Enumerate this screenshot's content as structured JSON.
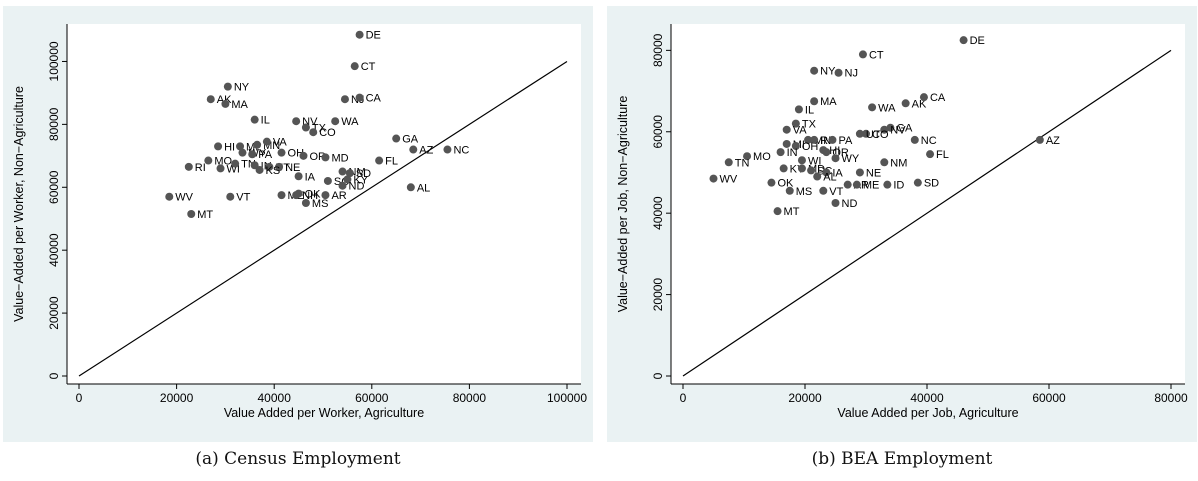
{
  "captions": {
    "a": "(a) Census Employment",
    "b": "(b) BEA Employment"
  },
  "colors": {
    "panel_bg": "#eaf2f3",
    "plot_bg": "#ffffff",
    "marker": "#555555",
    "axis": "#000000"
  },
  "chart_data": [
    {
      "type": "scatter",
      "xlabel": "Value Added per Worker, Agriculture",
      "ylabel": "Value−Added per Worker, Non−Agriculture",
      "xlim": [
        0,
        100000
      ],
      "ylim": [
        0,
        110000
      ],
      "xticks": [
        0,
        20000,
        40000,
        60000,
        80000,
        100000
      ],
      "yticks": [
        0,
        20000,
        40000,
        60000,
        80000,
        100000
      ],
      "reference_line": "45-degree",
      "points": [
        {
          "label": "DE",
          "x": 57500,
          "y": 108500
        },
        {
          "label": "CT",
          "x": 56500,
          "y": 98500
        },
        {
          "label": "NY",
          "x": 30500,
          "y": 92000
        },
        {
          "label": "AK",
          "x": 27000,
          "y": 88000
        },
        {
          "label": "MA",
          "x": 30000,
          "y": 86500
        },
        {
          "label": "NJ",
          "x": 54500,
          "y": 88000
        },
        {
          "label": "CA",
          "x": 57500,
          "y": 88500
        },
        {
          "label": "IL",
          "x": 36000,
          "y": 81500
        },
        {
          "label": "NV",
          "x": 44500,
          "y": 81000
        },
        {
          "label": "WA",
          "x": 52500,
          "y": 81000
        },
        {
          "label": "TX",
          "x": 46500,
          "y": 79000
        },
        {
          "label": "CO",
          "x": 48000,
          "y": 77500
        },
        {
          "label": "GA",
          "x": 65000,
          "y": 75500
        },
        {
          "label": "HI",
          "x": 28500,
          "y": 73000
        },
        {
          "label": "MI",
          "x": 33000,
          "y": 73000
        },
        {
          "label": "MN",
          "x": 36500,
          "y": 73500
        },
        {
          "label": "VA",
          "x": 38500,
          "y": 74500
        },
        {
          "label": "WY",
          "x": 33500,
          "y": 71000
        },
        {
          "label": "PA",
          "x": 35500,
          "y": 70500
        },
        {
          "label": "OH",
          "x": 41500,
          "y": 71000
        },
        {
          "label": "OR",
          "x": 46000,
          "y": 70000
        },
        {
          "label": "MD",
          "x": 50500,
          "y": 69500
        },
        {
          "label": "AZ",
          "x": 68500,
          "y": 72000
        },
        {
          "label": "NC",
          "x": 75500,
          "y": 72000
        },
        {
          "label": "FL",
          "x": 61500,
          "y": 68500
        },
        {
          "label": "MO",
          "x": 26500,
          "y": 68500
        },
        {
          "label": "RI",
          "x": 22500,
          "y": 66500
        },
        {
          "label": "WI",
          "x": 29000,
          "y": 66000
        },
        {
          "label": "TN",
          "x": 32000,
          "y": 67500
        },
        {
          "label": "IN",
          "x": 36000,
          "y": 67000
        },
        {
          "label": "UT",
          "x": 39000,
          "y": 66500
        },
        {
          "label": "NE",
          "x": 41000,
          "y": 66500
        },
        {
          "label": "KS",
          "x": 37000,
          "y": 65500
        },
        {
          "label": "IA",
          "x": 45000,
          "y": 63500
        },
        {
          "label": "NM",
          "x": 54000,
          "y": 65000
        },
        {
          "label": "SD",
          "x": 55500,
          "y": 64500
        },
        {
          "label": "SC",
          "x": 51000,
          "y": 62000
        },
        {
          "label": "KY",
          "x": 55000,
          "y": 62500
        },
        {
          "label": "ND",
          "x": 54000,
          "y": 60500
        },
        {
          "label": "AL",
          "x": 68000,
          "y": 60000
        },
        {
          "label": "WV",
          "x": 18500,
          "y": 57000
        },
        {
          "label": "VT",
          "x": 31000,
          "y": 57000
        },
        {
          "label": "ME",
          "x": 41500,
          "y": 57500
        },
        {
          "label": "OK",
          "x": 45000,
          "y": 58000
        },
        {
          "label": "NH",
          "x": 44500,
          "y": 57500
        },
        {
          "label": "AR",
          "x": 50500,
          "y": 57500
        },
        {
          "label": "MS",
          "x": 46500,
          "y": 55000
        },
        {
          "label": "MT",
          "x": 23000,
          "y": 51500
        }
      ]
    },
    {
      "type": "scatter",
      "xlabel": "Value Added per Job, Agriculture",
      "ylabel": "Value−Added per Job, Non−Agriculture",
      "xlim": [
        0,
        80000
      ],
      "ylim": [
        0,
        85000
      ],
      "xticks": [
        0,
        20000,
        40000,
        60000,
        80000
      ],
      "yticks": [
        0,
        20000,
        40000,
        60000,
        80000
      ],
      "reference_line": "45-degree",
      "points": [
        {
          "label": "DE",
          "x": 46000,
          "y": 82500
        },
        {
          "label": "CT",
          "x": 29500,
          "y": 79000
        },
        {
          "label": "NY",
          "x": 21500,
          "y": 75000
        },
        {
          "label": "NJ",
          "x": 25500,
          "y": 74500
        },
        {
          "label": "MA",
          "x": 21500,
          "y": 67500
        },
        {
          "label": "IL",
          "x": 19000,
          "y": 65500
        },
        {
          "label": "WA",
          "x": 31000,
          "y": 66000
        },
        {
          "label": "AK",
          "x": 36500,
          "y": 67000
        },
        {
          "label": "CA",
          "x": 39500,
          "y": 68500
        },
        {
          "label": "TX",
          "x": 18500,
          "y": 62000
        },
        {
          "label": "VA",
          "x": 17000,
          "y": 60500
        },
        {
          "label": "GA",
          "x": 34000,
          "y": 61000
        },
        {
          "label": "NV",
          "x": 33000,
          "y": 60500
        },
        {
          "label": "CO",
          "x": 30000,
          "y": 59500
        },
        {
          "label": "UT",
          "x": 29000,
          "y": 59500
        },
        {
          "label": "MN",
          "x": 20500,
          "y": 58000
        },
        {
          "label": "RI",
          "x": 21500,
          "y": 58000
        },
        {
          "label": "PA",
          "x": 24500,
          "y": 58000
        },
        {
          "label": "NC",
          "x": 38000,
          "y": 58000
        },
        {
          "label": "AZ",
          "x": 58500,
          "y": 58000
        },
        {
          "label": "MI",
          "x": 17000,
          "y": 57000
        },
        {
          "label": "OH",
          "x": 18500,
          "y": 56500
        },
        {
          "label": "HI",
          "x": 23000,
          "y": 55500
        },
        {
          "label": "OR",
          "x": 23500,
          "y": 55000
        },
        {
          "label": "IN",
          "x": 16000,
          "y": 55000
        },
        {
          "label": "FL",
          "x": 40500,
          "y": 54500
        },
        {
          "label": "MO",
          "x": 10500,
          "y": 54000
        },
        {
          "label": "WY",
          "x": 25000,
          "y": 53500
        },
        {
          "label": "WI",
          "x": 19500,
          "y": 53000
        },
        {
          "label": "TN",
          "x": 7500,
          "y": 52500
        },
        {
          "label": "NM",
          "x": 33000,
          "y": 52500
        },
        {
          "label": "KY",
          "x": 16500,
          "y": 51000
        },
        {
          "label": "MD",
          "x": 19500,
          "y": 51000
        },
        {
          "label": "SC",
          "x": 21000,
          "y": 50500
        },
        {
          "label": "IA",
          "x": 23500,
          "y": 50000
        },
        {
          "label": "AL",
          "x": 22000,
          "y": 49000
        },
        {
          "label": "NE",
          "x": 29000,
          "y": 50000
        },
        {
          "label": "WV",
          "x": 5000,
          "y": 48500
        },
        {
          "label": "OK",
          "x": 14500,
          "y": 47500
        },
        {
          "label": "AR",
          "x": 27000,
          "y": 47000
        },
        {
          "label": "ME",
          "x": 28500,
          "y": 47000
        },
        {
          "label": "ID",
          "x": 33500,
          "y": 47000
        },
        {
          "label": "SD",
          "x": 38500,
          "y": 47500
        },
        {
          "label": "MS",
          "x": 17500,
          "y": 45500
        },
        {
          "label": "VT",
          "x": 23000,
          "y": 45500
        },
        {
          "label": "ND",
          "x": 25000,
          "y": 42500
        },
        {
          "label": "MT",
          "x": 15500,
          "y": 40500
        }
      ]
    }
  ]
}
